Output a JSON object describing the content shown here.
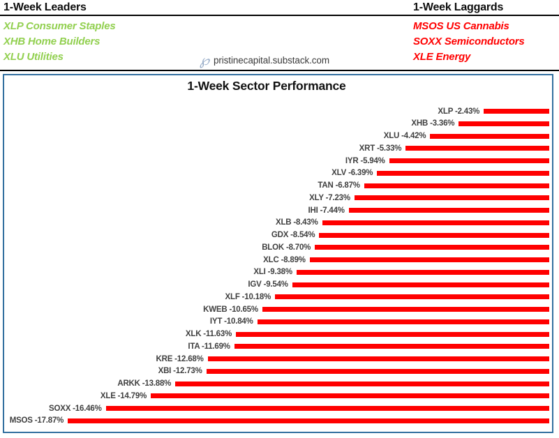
{
  "header": {
    "leaders_title": "1-Week Leaders",
    "laggards_title": "1-Week Laggards",
    "leaders": [
      "XLP Consumer Staples",
      "XHB Home Builders",
      "XLU Utilities"
    ],
    "laggards": [
      "MSOS US Cannabis",
      "SOXX Semiconductors",
      "XLE Energy"
    ],
    "watermark": {
      "icon": "script-p-logo",
      "icon_glyph": "℘",
      "text": "pristinecapital.substack.com"
    },
    "colors": {
      "leaders_text": "#92d050",
      "laggards_text": "#ff0000"
    }
  },
  "chart_data": {
    "type": "bar",
    "orientation": "horizontal",
    "title": "1-Week Sector Performance",
    "unit": "%",
    "categories": [
      "XLP",
      "XHB",
      "XLU",
      "XRT",
      "IYR",
      "XLV",
      "TAN",
      "XLY",
      "IHI",
      "XLB",
      "GDX",
      "BLOK",
      "XLC",
      "XLI",
      "IGV",
      "XLF",
      "KWEB",
      "IYT",
      "XLK",
      "ITA",
      "KRE",
      "XBI",
      "ARKK",
      "XLE",
      "SOXX",
      "MSOS"
    ],
    "values": [
      -2.43,
      -3.36,
      -4.42,
      -5.33,
      -5.94,
      -6.39,
      -6.87,
      -7.23,
      -7.44,
      -8.43,
      -8.54,
      -8.7,
      -8.89,
      -9.38,
      -9.54,
      -10.18,
      -10.65,
      -10.84,
      -11.63,
      -11.69,
      -12.68,
      -12.73,
      -13.88,
      -14.79,
      -16.46,
      -17.87
    ],
    "xlim": [
      -18.5,
      0
    ],
    "value_axis_hidden": true,
    "bars_anchor": "right",
    "grid": false,
    "legend": false,
    "bar_color": "#ff0000",
    "label_color": "#404040",
    "border_color": "#326f9f"
  }
}
